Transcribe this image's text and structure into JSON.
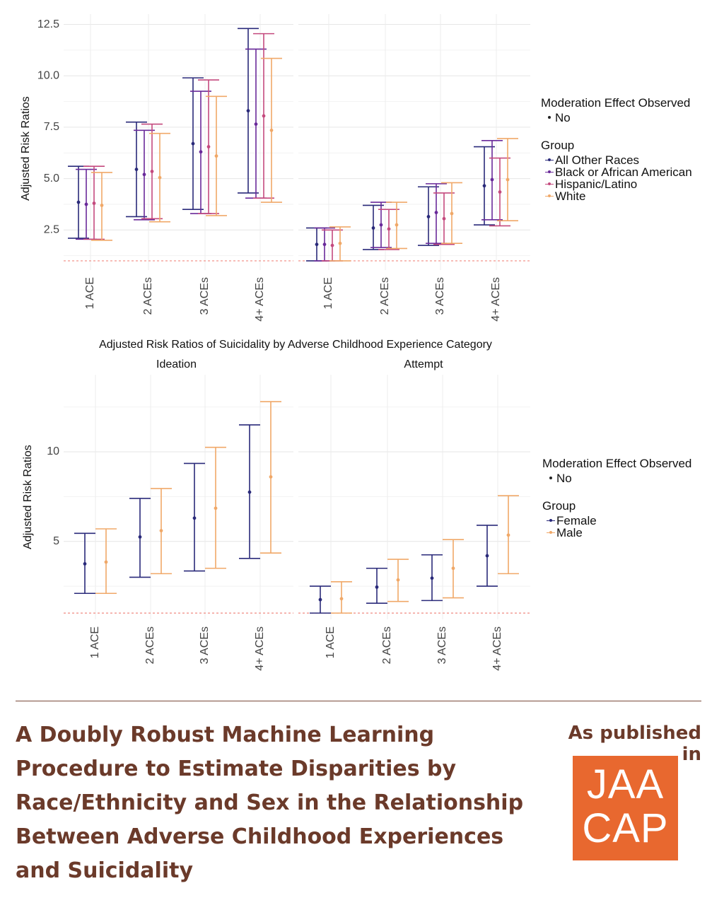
{
  "chart_data": [
    {
      "type": "error_bar",
      "title": "Adjusted Risk Ratios of Suicidality by Adverse Childhood Experience Category",
      "ylabel": "Adjusted Risk Ratios",
      "ylim": [
        1.0,
        13.0
      ],
      "yticks": [
        "2.5",
        "5.0",
        "7.5",
        "10.0",
        "12.5"
      ],
      "reference_line": 1.0,
      "categories": [
        "1 ACE",
        "2 ACEs",
        "3 ACEs",
        "4+ ACEs"
      ],
      "panels": [
        "Ideation",
        "Attempt"
      ],
      "series": [
        {
          "name": "All Other Races",
          "color": "#2a2a7a",
          "Ideation": [
            [
              2.1,
              3.85,
              5.6
            ],
            [
              3.15,
              5.45,
              7.75
            ],
            [
              3.5,
              6.7,
              9.9
            ],
            [
              4.3,
              8.3,
              12.3
            ]
          ],
          "Attempt": [
            [
              1.0,
              1.8,
              2.6
            ],
            [
              1.55,
              2.6,
              3.7
            ],
            [
              1.75,
              3.15,
              4.6
            ],
            [
              2.75,
              4.65,
              6.55
            ]
          ]
        },
        {
          "name": "Black or African American",
          "color": "#6a2a9a",
          "Ideation": [
            [
              2.05,
              3.75,
              5.45
            ],
            [
              3.0,
              5.2,
              7.35
            ],
            [
              3.3,
              6.3,
              9.25
            ],
            [
              4.05,
              7.65,
              11.3
            ]
          ],
          "Attempt": [
            [
              1.0,
              1.8,
              2.6
            ],
            [
              1.65,
              2.75,
              3.85
            ],
            [
              1.85,
              3.35,
              4.75
            ],
            [
              3.0,
              4.95,
              6.85
            ]
          ]
        },
        {
          "name": "Hispanic/Latino",
          "color": "#c44a7e",
          "Ideation": [
            [
              2.05,
              3.8,
              5.6
            ],
            [
              3.05,
              5.35,
              7.65
            ],
            [
              3.3,
              6.55,
              9.8
            ],
            [
              4.05,
              8.05,
              12.05
            ]
          ],
          "Attempt": [
            [
              1.0,
              1.75,
              2.5
            ],
            [
              1.55,
              2.55,
              3.5
            ],
            [
              1.8,
              3.05,
              4.3
            ],
            [
              2.7,
              4.35,
              6.0
            ]
          ]
        },
        {
          "name": "White",
          "color": "#f0a868",
          "Ideation": [
            [
              2.0,
              3.7,
              5.3
            ],
            [
              2.9,
              5.05,
              7.2
            ],
            [
              3.2,
              6.1,
              9.0
            ],
            [
              3.85,
              7.35,
              10.85
            ]
          ],
          "Attempt": [
            [
              1.0,
              1.85,
              2.65
            ],
            [
              1.6,
              2.75,
              3.85
            ],
            [
              1.85,
              3.3,
              4.8
            ],
            [
              2.95,
              4.95,
              6.95
            ]
          ]
        }
      ],
      "legend": {
        "moderation_title": "Moderation Effect Observed",
        "moderation_value": "No",
        "group_title": "Group"
      }
    },
    {
      "type": "error_bar",
      "title": "",
      "ylabel": "Adjusted Risk Ratios",
      "ylim": [
        1.0,
        13.0
      ],
      "yticks": [
        "5",
        "10"
      ],
      "reference_line": 1.0,
      "categories": [
        "1 ACE",
        "2 ACEs",
        "3 ACEs",
        "4+ ACEs"
      ],
      "panels": [
        "Ideation",
        "Attempt"
      ],
      "series": [
        {
          "name": "Female",
          "color": "#2a2a7a",
          "Ideation": [
            [
              2.1,
              3.75,
              5.45
            ],
            [
              3.0,
              5.25,
              7.4
            ],
            [
              3.35,
              6.3,
              9.35
            ],
            [
              4.05,
              7.75,
              11.5
            ]
          ],
          "Attempt": [
            [
              1.0,
              1.75,
              2.5
            ],
            [
              1.55,
              2.45,
              3.5
            ],
            [
              1.7,
              2.95,
              4.25
            ],
            [
              2.5,
              4.2,
              5.9
            ]
          ]
        },
        {
          "name": "Male",
          "color": "#f0a868",
          "Ideation": [
            [
              2.1,
              3.85,
              5.7
            ],
            [
              3.2,
              5.6,
              7.95
            ],
            [
              3.5,
              6.85,
              10.25
            ],
            [
              4.35,
              8.6,
              12.8
            ]
          ],
          "Attempt": [
            [
              1.0,
              1.8,
              2.75
            ],
            [
              1.65,
              2.85,
              4.0
            ],
            [
              1.85,
              3.5,
              5.1
            ],
            [
              3.2,
              5.35,
              7.55
            ]
          ]
        }
      ],
      "legend": {
        "moderation_title": "Moderation Effect Observed",
        "moderation_value": "No",
        "group_title": "Group"
      }
    }
  ],
  "footer": {
    "headline": "A Doubly Robust Machine Learning Procedure to Estimate Disparities by Race/Ethnicity and Sex in the Relationship Between Adverse Childhood Experiences and Suicidality",
    "published_label": "As published in",
    "logo_line1": "JAA",
    "logo_line2": "CAP",
    "text_color": "#6b3a2a",
    "logo_color": "#e8682f"
  }
}
